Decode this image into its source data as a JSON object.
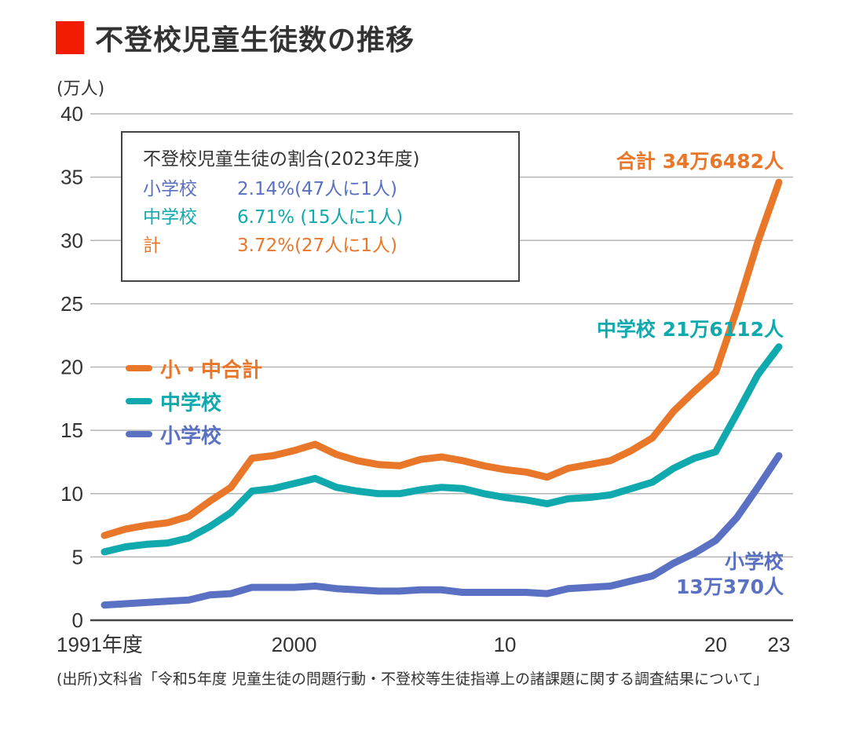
{
  "colors": {
    "accent": "#f21d00",
    "total": "#e8772a",
    "junior_high": "#10a9ad",
    "elementary": "#5a70c2",
    "grid": "#b5b5b5",
    "axis": "#444444"
  },
  "header": {
    "title": "不登校児童生徒数の推移",
    "unit": "(万人)"
  },
  "inset": {
    "title": "不登校児童生徒の割合(2023年度)",
    "rows": [
      {
        "label": "小学校",
        "value": "2.14%(47人に1人)",
        "series": "elementary"
      },
      {
        "label": "中学校",
        "value": "6.71% (15人に1人)",
        "series": "junior_high"
      },
      {
        "label": "計",
        "value": "3.72%(27人に1人)",
        "series": "total"
      }
    ]
  },
  "legend": [
    {
      "label": "小・中合計",
      "series": "total"
    },
    {
      "label": "中学校",
      "series": "junior_high"
    },
    {
      "label": "小学校",
      "series": "elementary"
    }
  ],
  "annotations": {
    "total": "合計 34万6482人",
    "junior_high": "中学校 21万6112人",
    "elementary_line1": "小学校",
    "elementary_line2": "13万370人"
  },
  "source": "(出所)文科省「令和5年度 児童生徒の問題行動・不登校等生徒指導上の諸課題に関する調査結果について」",
  "chart_data": {
    "type": "line",
    "title": "不登校児童生徒数の推移",
    "xlabel": "",
    "ylabel": "(万人)",
    "ylim": [
      0,
      40
    ],
    "yticks": [
      0,
      5,
      10,
      15,
      20,
      25,
      30,
      35,
      40
    ],
    "xlim": [
      1991,
      2023
    ],
    "xtick_values": [
      1991,
      2000,
      2010,
      2020,
      2023
    ],
    "xtick_labels": [
      "1991年度",
      "2000",
      "10",
      "20",
      "23"
    ],
    "grid": true,
    "legend_position": "middle-left",
    "x": [
      1991,
      1992,
      1993,
      1994,
      1995,
      1996,
      1997,
      1998,
      1999,
      2000,
      2001,
      2002,
      2003,
      2004,
      2005,
      2006,
      2007,
      2008,
      2009,
      2010,
      2011,
      2012,
      2013,
      2014,
      2015,
      2016,
      2017,
      2018,
      2019,
      2020,
      2021,
      2022,
      2023
    ],
    "series": [
      {
        "name": "小・中合計",
        "key": "total",
        "values": [
          6.7,
          7.2,
          7.5,
          7.7,
          8.2,
          9.4,
          10.5,
          12.8,
          13.0,
          13.4,
          13.9,
          13.1,
          12.6,
          12.3,
          12.2,
          12.7,
          12.9,
          12.6,
          12.2,
          11.9,
          11.7,
          11.3,
          12.0,
          12.3,
          12.6,
          13.4,
          14.4,
          16.5,
          18.1,
          19.6,
          24.5,
          29.9,
          34.6
        ]
      },
      {
        "name": "中学校",
        "key": "junior_high",
        "values": [
          5.4,
          5.8,
          6.0,
          6.1,
          6.5,
          7.4,
          8.5,
          10.2,
          10.4,
          10.8,
          11.2,
          10.5,
          10.2,
          10.0,
          10.0,
          10.3,
          10.5,
          10.4,
          10.0,
          9.7,
          9.5,
          9.2,
          9.6,
          9.7,
          9.9,
          10.4,
          10.9,
          12.0,
          12.8,
          13.3,
          16.3,
          19.4,
          21.6
        ]
      },
      {
        "name": "小学校",
        "key": "elementary",
        "values": [
          1.2,
          1.3,
          1.4,
          1.5,
          1.6,
          2.0,
          2.1,
          2.6,
          2.6,
          2.6,
          2.7,
          2.5,
          2.4,
          2.3,
          2.3,
          2.4,
          2.4,
          2.2,
          2.2,
          2.2,
          2.2,
          2.1,
          2.5,
          2.6,
          2.7,
          3.1,
          3.5,
          4.5,
          5.3,
          6.3,
          8.1,
          10.5,
          13.0
        ]
      }
    ]
  }
}
